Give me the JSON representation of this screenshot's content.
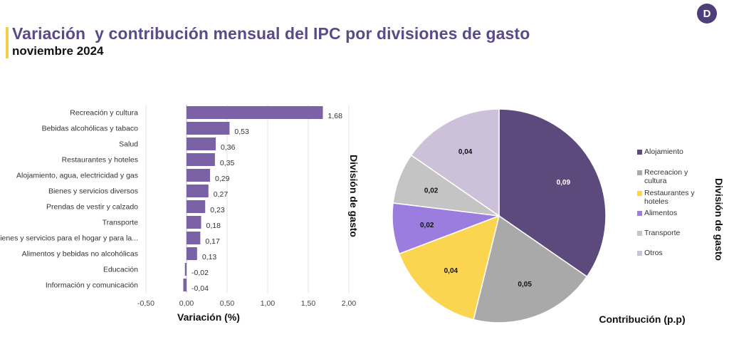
{
  "header": {
    "title": "Variación  y contribución mensual del IPC por divisiones de gasto",
    "subtitle": "noviembre 2024",
    "title_color": "#5b4a8a",
    "accent_color": "#f2d04a",
    "logo_glyph": "D",
    "logo_color": "#4e3f7a"
  },
  "chart_data": [
    {
      "type": "bar",
      "orientation": "horizontal",
      "categories": [
        "Recreación y cultura",
        "Bebidas alcohólicas y tabaco",
        "Salud",
        "Restaurantes y hoteles",
        "Alojamiento, agua, electricidad y gas",
        "Bienes y servicios diversos",
        "Prendas de vestir y calzado",
        "Transporte",
        "Bienes y servicios para el hogar y para la...",
        "Alimentos y bebidas no alcohólicas",
        "Educación",
        "Información y comunicación"
      ],
      "values": [
        1.68,
        0.53,
        0.36,
        0.35,
        0.29,
        0.27,
        0.23,
        0.18,
        0.17,
        0.13,
        -0.02,
        -0.04
      ],
      "data_labels": [
        "1,68",
        "0,53",
        "0,36",
        "0,35",
        "0,29",
        "0,27",
        "0,23",
        "0,18",
        "0,17",
        "0,13",
        "-0,02",
        "-0,04"
      ],
      "xlabel": "Variación (%)",
      "ylabel": "División de gasto",
      "xlim": [
        -0.5,
        2.0
      ],
      "xticks": [
        -0.5,
        0,
        0.5,
        1,
        1.5,
        2
      ],
      "xtick_labels": [
        "-0,50",
        "0,00",
        "0,50",
        "1,00",
        "1,50",
        "2,00"
      ],
      "grid": "vertical",
      "bar_color": "#7b62a6"
    },
    {
      "type": "pie",
      "labels": [
        "Alojamiento",
        "Recreacion y cultura",
        "Restaurantes y hoteles",
        "Alimentos",
        "Transporte",
        "Otros"
      ],
      "values": [
        0.09,
        0.05,
        0.04,
        0.02,
        0.02,
        0.04
      ],
      "data_labels": [
        "0,09",
        "0,05",
        "0,04",
        "0,02",
        "0,02",
        "0,04"
      ],
      "colors": [
        "#5d4a7d",
        "#a9a9a9",
        "#fbd54f",
        "#9b7ddf",
        "#c4c4c4",
        "#cdc1da"
      ],
      "xlabel": "Contribución (p.p)",
      "ylabel": "División de gasto",
      "legend": "right"
    }
  ]
}
